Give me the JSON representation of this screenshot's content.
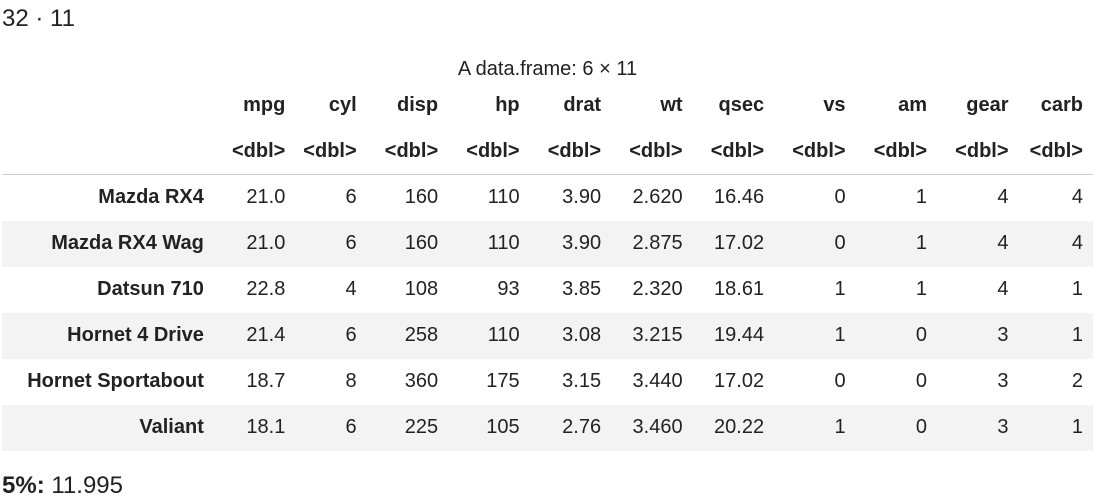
{
  "dims_output": "32 · 11",
  "dataframe": {
    "caption": "A data.frame: 6 × 11",
    "columns": [
      "mpg",
      "cyl",
      "disp",
      "hp",
      "drat",
      "wt",
      "qsec",
      "vs",
      "am",
      "gear",
      "carb"
    ],
    "types": [
      "<dbl>",
      "<dbl>",
      "<dbl>",
      "<dbl>",
      "<dbl>",
      "<dbl>",
      "<dbl>",
      "<dbl>",
      "<dbl>",
      "<dbl>",
      "<dbl>"
    ],
    "rows": [
      {
        "name": "Mazda RX4",
        "values": [
          "21.0",
          "6",
          "160",
          "110",
          "3.90",
          "2.620",
          "16.46",
          "0",
          "1",
          "4",
          "4"
        ]
      },
      {
        "name": "Mazda RX4 Wag",
        "values": [
          "21.0",
          "6",
          "160",
          "110",
          "3.90",
          "2.875",
          "17.02",
          "0",
          "1",
          "4",
          "4"
        ]
      },
      {
        "name": "Datsun 710",
        "values": [
          "22.8",
          "4",
          "108",
          "93",
          "3.85",
          "2.320",
          "18.61",
          "1",
          "1",
          "4",
          "1"
        ]
      },
      {
        "name": "Hornet 4 Drive",
        "values": [
          "21.4",
          "6",
          "258",
          "110",
          "3.08",
          "3.215",
          "19.44",
          "1",
          "0",
          "3",
          "1"
        ]
      },
      {
        "name": "Hornet Sportabout",
        "values": [
          "18.7",
          "8",
          "360",
          "175",
          "3.15",
          "3.440",
          "17.02",
          "0",
          "0",
          "3",
          "2"
        ]
      },
      {
        "name": "Valiant",
        "values": [
          "18.1",
          "6",
          "225",
          "105",
          "2.76",
          "3.460",
          "20.22",
          "1",
          "0",
          "3",
          "1"
        ]
      }
    ]
  },
  "quantile_output": {
    "label": "5%:",
    "value": "11.995"
  }
}
